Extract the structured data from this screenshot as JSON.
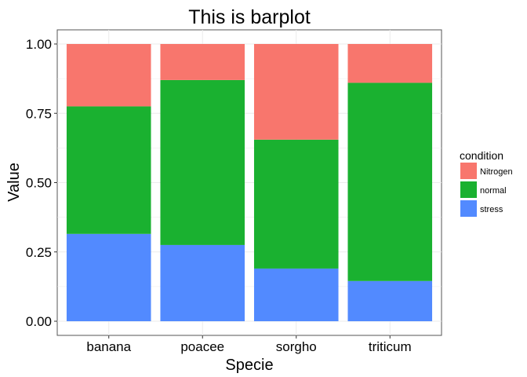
{
  "chart_data": {
    "type": "bar",
    "stacked": true,
    "title": "This is barplot",
    "xlabel": "Specie",
    "ylabel": "Value",
    "categories": [
      "banana",
      "poacee",
      "sorgho",
      "triticum"
    ],
    "ylim": [
      0,
      1
    ],
    "yticks": [
      "0.00",
      "0.25",
      "0.50",
      "0.75",
      "1.00"
    ],
    "legend_title": "condition",
    "legend_position": "right",
    "grid": true,
    "series": [
      {
        "name": "Nitrogen",
        "color": "#F8766D",
        "values": [
          0.225,
          0.13,
          0.345,
          0.14
        ]
      },
      {
        "name": "normal",
        "color": "#1AB130",
        "values": [
          0.46,
          0.595,
          0.465,
          0.715
        ]
      },
      {
        "name": "stress",
        "color": "#528AFF",
        "values": [
          0.315,
          0.275,
          0.19,
          0.145
        ]
      }
    ]
  }
}
